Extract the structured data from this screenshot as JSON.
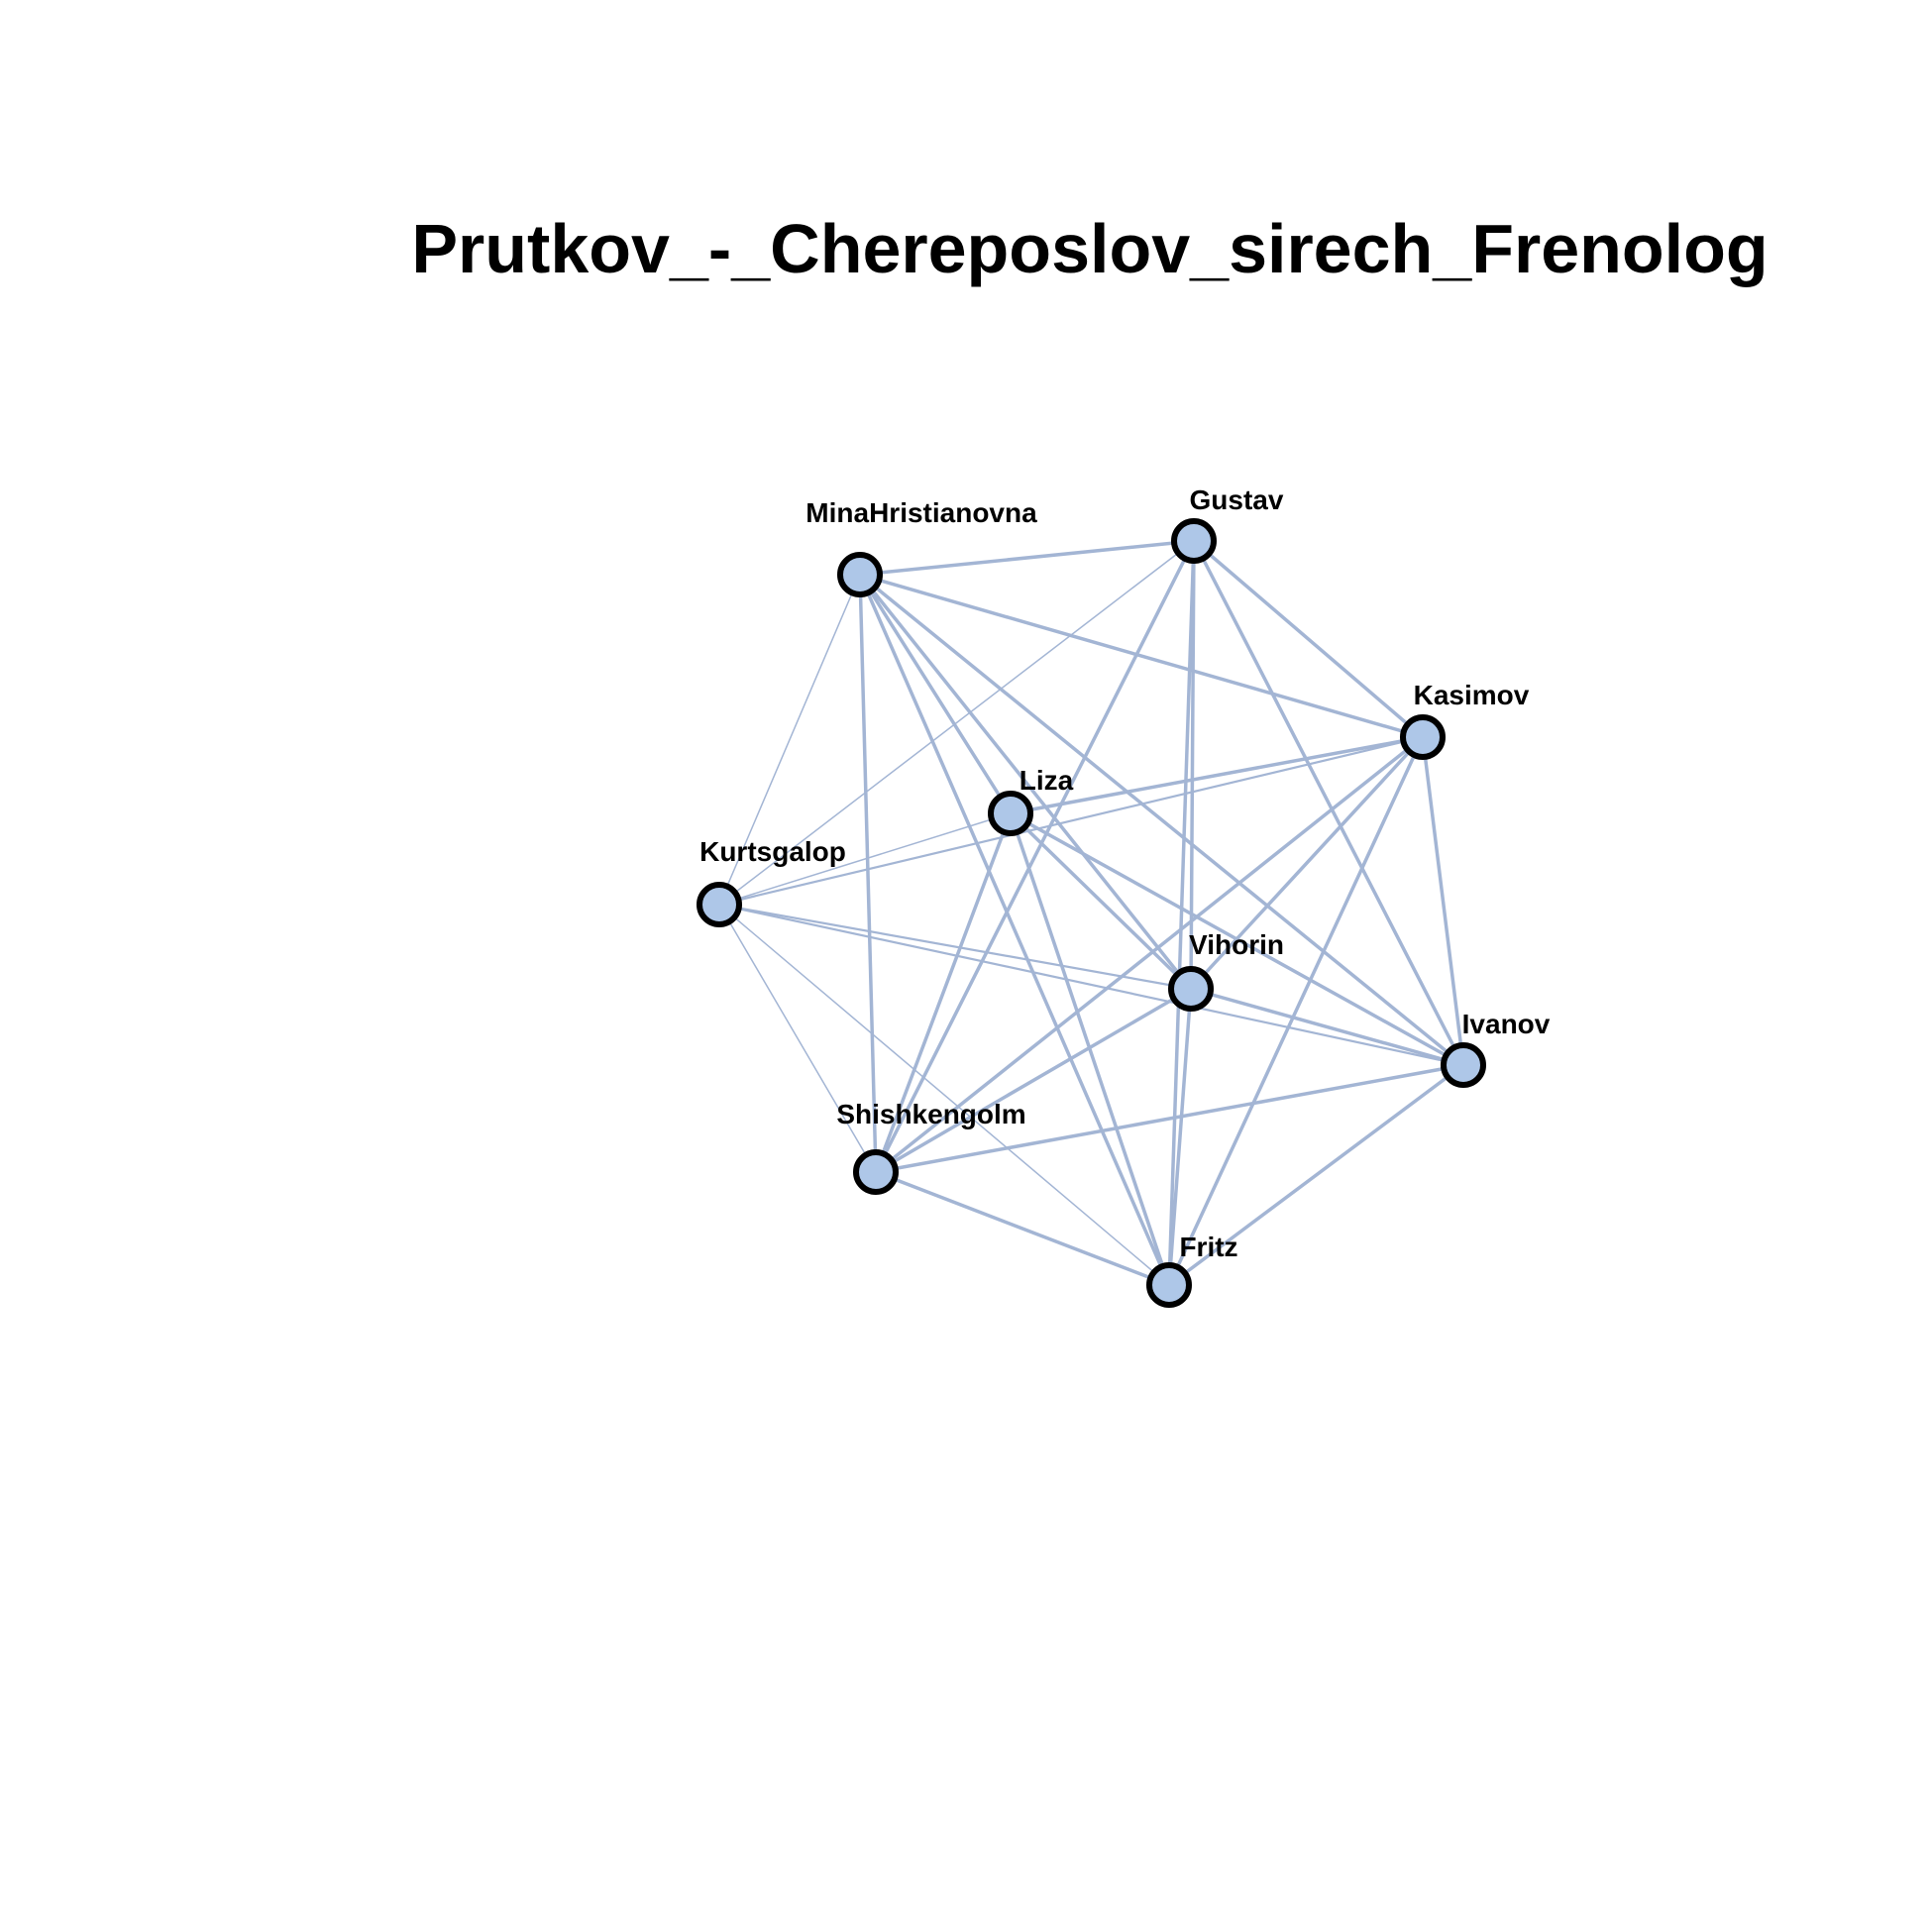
{
  "title": "Prutkov_-_Chereposlov_sirech_Frenolog",
  "colors": {
    "edge": "#a3b5d4",
    "node_fill": "#aec7e8",
    "node_stroke": "#000000",
    "background": "#ffffff"
  },
  "nodes": [
    {
      "id": "MinaHristianovna",
      "label": "MinaHristianovna"
    },
    {
      "id": "Gustav",
      "label": "Gustav"
    },
    {
      "id": "Kasimov",
      "label": "Kasimov"
    },
    {
      "id": "Liza",
      "label": "Liza"
    },
    {
      "id": "Kurtsgalop",
      "label": "Kurtsgalop"
    },
    {
      "id": "Vihorin",
      "label": "Vihorin"
    },
    {
      "id": "Ivanov",
      "label": "Ivanov"
    },
    {
      "id": "Shishkengolm",
      "label": "Shishkengolm"
    },
    {
      "id": "Fritz",
      "label": "Fritz"
    }
  ],
  "edges": [
    {
      "source": "MinaHristianovna",
      "target": "Gustav",
      "weight": 3
    },
    {
      "source": "MinaHristianovna",
      "target": "Kasimov",
      "weight": 3
    },
    {
      "source": "MinaHristianovna",
      "target": "Liza",
      "weight": 3
    },
    {
      "source": "MinaHristianovna",
      "target": "Kurtsgalop",
      "weight": 1
    },
    {
      "source": "MinaHristianovna",
      "target": "Vihorin",
      "weight": 3
    },
    {
      "source": "MinaHristianovna",
      "target": "Ivanov",
      "weight": 3
    },
    {
      "source": "MinaHristianovna",
      "target": "Shishkengolm",
      "weight": 3
    },
    {
      "source": "MinaHristianovna",
      "target": "Fritz",
      "weight": 3
    },
    {
      "source": "Gustav",
      "target": "Kasimov",
      "weight": 3
    },
    {
      "source": "Gustav",
      "target": "Kurtsgalop",
      "weight": 1
    },
    {
      "source": "Gustav",
      "target": "Vihorin",
      "weight": 3
    },
    {
      "source": "Gustav",
      "target": "Ivanov",
      "weight": 3
    },
    {
      "source": "Gustav",
      "target": "Shishkengolm",
      "weight": 3
    },
    {
      "source": "Gustav",
      "target": "Fritz",
      "weight": 3
    },
    {
      "source": "Kasimov",
      "target": "Liza",
      "weight": 3
    },
    {
      "source": "Kasimov",
      "target": "Kurtsgalop",
      "weight": 2
    },
    {
      "source": "Kasimov",
      "target": "Ivanov",
      "weight": 3
    },
    {
      "source": "Kasimov",
      "target": "Shishkengolm",
      "weight": 3
    },
    {
      "source": "Kasimov",
      "target": "Vihorin",
      "weight": 3
    },
    {
      "source": "Kasimov",
      "target": "Fritz",
      "weight": 3
    },
    {
      "source": "Liza",
      "target": "Kurtsgalop",
      "weight": 1
    },
    {
      "source": "Liza",
      "target": "Vihorin",
      "weight": 3
    },
    {
      "source": "Liza",
      "target": "Ivanov",
      "weight": 3
    },
    {
      "source": "Liza",
      "target": "Shishkengolm",
      "weight": 3
    },
    {
      "source": "Liza",
      "target": "Fritz",
      "weight": 3
    },
    {
      "source": "Kurtsgalop",
      "target": "Vihorin",
      "weight": 2
    },
    {
      "source": "Kurtsgalop",
      "target": "Ivanov",
      "weight": 2
    },
    {
      "source": "Kurtsgalop",
      "target": "Shishkengolm",
      "weight": 1
    },
    {
      "source": "Kurtsgalop",
      "target": "Fritz",
      "weight": 1
    },
    {
      "source": "Vihorin",
      "target": "Ivanov",
      "weight": 3
    },
    {
      "source": "Vihorin",
      "target": "Shishkengolm",
      "weight": 3
    },
    {
      "source": "Vihorin",
      "target": "Fritz",
      "weight": 3
    },
    {
      "source": "Ivanov",
      "target": "Shishkengolm",
      "weight": 3
    },
    {
      "source": "Ivanov",
      "target": "Fritz",
      "weight": 3
    },
    {
      "source": "Shishkengolm",
      "target": "Fritz",
      "weight": 3
    }
  ]
}
